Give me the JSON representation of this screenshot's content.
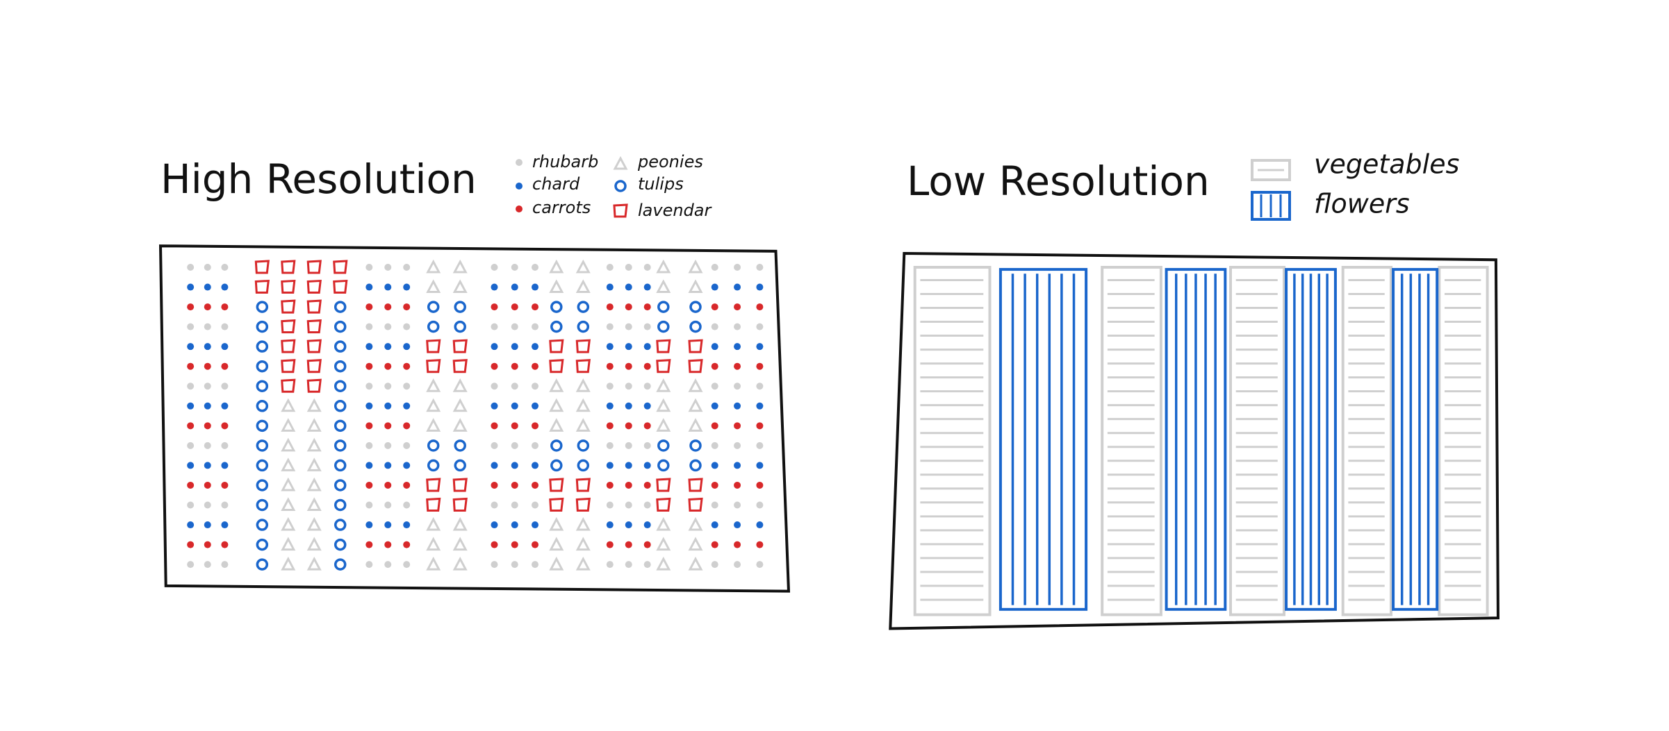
{
  "high_resolution": {
    "title": "High Resolution",
    "legend": [
      "rhubarb",
      "chard",
      "carrots",
      "peonies",
      "tulips",
      "lavendar"
    ]
  },
  "low_resolution": {
    "title": "Low Resolution",
    "legend": [
      "vegetables",
      "flowers"
    ]
  }
}
